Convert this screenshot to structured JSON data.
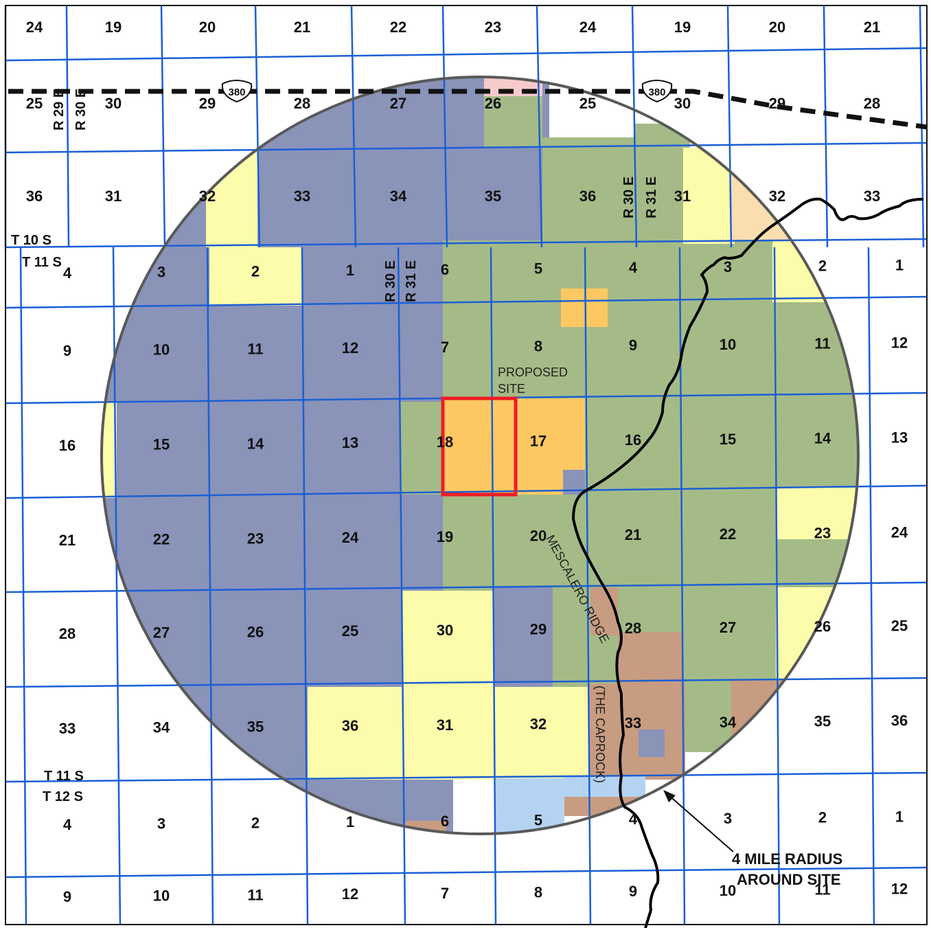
{
  "colors": {
    "purple": "#8a93b8",
    "green": "#a5bb87",
    "yellow": "#fdfcaa",
    "orange": "#fdc862",
    "brown": "#c89c80",
    "lightblue": "#b4d3f2",
    "peach": "#fadeb0",
    "pink": "#f8cbcb",
    "grid": "#1a5fd6",
    "circle": "#595959",
    "site": "#ee1c24"
  },
  "sections": [
    [
      "24",
      "19",
      "20",
      "21",
      "22",
      "23",
      "24",
      "19",
      "20",
      "21"
    ],
    [
      "25",
      "30",
      "29",
      "28",
      "27",
      "26",
      "25",
      "30",
      "29",
      "28"
    ],
    [
      "36",
      "31",
      "32",
      "33",
      "34",
      "35",
      "36",
      "31",
      "32",
      "33"
    ],
    [
      "4",
      "3",
      "2",
      "1",
      "6",
      "5",
      "4",
      "3",
      "2",
      "1"
    ],
    [
      "9",
      "10",
      "11",
      "12",
      "7",
      "8",
      "9",
      "10",
      "11",
      "12"
    ],
    [
      "16",
      "15",
      "14",
      "13",
      "18",
      "17",
      "16",
      "15",
      "14",
      "13"
    ],
    [
      "21",
      "22",
      "23",
      "24",
      "19",
      "20",
      "21",
      "22",
      "23",
      "24"
    ],
    [
      "28",
      "27",
      "26",
      "25",
      "30",
      "29",
      "28",
      "27",
      "26",
      "25"
    ],
    [
      "33",
      "34",
      "35",
      "36",
      "31",
      "32",
      "33",
      "34",
      "35",
      "36"
    ],
    [
      "4",
      "3",
      "2",
      "1",
      "6",
      "5",
      "4",
      "3",
      "2",
      "1"
    ],
    [
      "9",
      "10",
      "11",
      "12",
      "7",
      "8",
      "9",
      "10",
      "11",
      "12"
    ]
  ],
  "range_labels": {
    "r29e": "R 29 E",
    "r30e": "R 30 E",
    "r31e": "R 31 E"
  },
  "township_labels": {
    "t10s": "T 10 S",
    "t11s": "T 11 S",
    "t12s": "T 12 S"
  },
  "highway": {
    "route": "380"
  },
  "proposed_site": {
    "line1": "PROPOSED",
    "line2": "SITE"
  },
  "ridge_label": {
    "name": "MESCALERO RIDGE",
    "alt": "(THE CAPROCK)"
  },
  "radius_label": {
    "line1": "4 MILE RADIUS",
    "line2": "AROUND SITE"
  }
}
